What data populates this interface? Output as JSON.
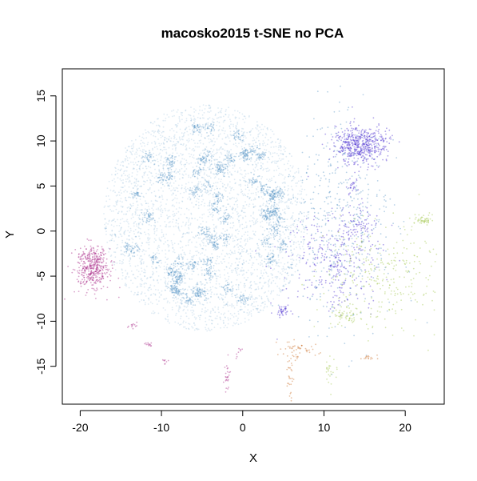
{
  "chart_data": {
    "type": "scatter",
    "title": "macosko2015 t-SNE no PCA",
    "xlabel": "X",
    "ylabel": "Y",
    "xlim": [
      -22.2,
      24.8
    ],
    "ylim": [
      -19.2,
      18.0
    ],
    "xticks": [
      -20,
      -10,
      0,
      10,
      20
    ],
    "yticks": [
      -15,
      -10,
      -5,
      0,
      5,
      10,
      15
    ],
    "xtick_labels": [
      "-20",
      "-10",
      "0",
      "10",
      "20"
    ],
    "ytick_labels": [
      "-15",
      "-10",
      "-5",
      "0",
      "5",
      "10",
      "15"
    ],
    "grid": false,
    "legend": "none",
    "point_style": "small translucent dots",
    "clusters": [
      {
        "color": "#4e8fc2",
        "n": 5200,
        "center": [
          -4.5,
          1.5
        ],
        "spread": [
          6.0,
          6.0
        ],
        "shape": "disc",
        "subclusters": 60
      },
      {
        "color": "#4e8fc2",
        "n": 500,
        "center": [
          12.0,
          0.5
        ],
        "spread": [
          3.0,
          6.0
        ],
        "shape": "gauss"
      },
      {
        "color": "#3b1fce",
        "n": 520,
        "center": [
          14.4,
          9.5
        ],
        "spread": [
          1.6,
          1.1
        ],
        "shape": "gauss"
      },
      {
        "color": "#3b1fce",
        "n": 260,
        "center": [
          11.0,
          -3.5
        ],
        "spread": [
          3.0,
          3.0
        ],
        "shape": "gauss"
      },
      {
        "color": "#3b1fce",
        "n": 80,
        "center": [
          14.5,
          0.5
        ],
        "spread": [
          1.2,
          1.0
        ],
        "shape": "gauss"
      },
      {
        "color": "#3b1fce",
        "n": 40,
        "center": [
          5.0,
          -8.8
        ],
        "spread": [
          0.4,
          0.3
        ],
        "shape": "gauss"
      },
      {
        "color": "#3b1fce",
        "n": 25,
        "center": [
          13.6,
          5.0
        ],
        "spread": [
          0.3,
          0.4
        ],
        "shape": "gauss"
      },
      {
        "color": "#3b1fce",
        "n": 30,
        "center": [
          11.8,
          -4.0
        ],
        "spread": [
          0.4,
          0.7
        ],
        "shape": "gauss"
      },
      {
        "color": "#9cc23e",
        "n": 260,
        "center": [
          17.5,
          -5.0
        ],
        "spread": [
          3.5,
          3.0
        ],
        "shape": "gauss"
      },
      {
        "color": "#9cc23e",
        "n": 50,
        "center": [
          22.3,
          1.2
        ],
        "spread": [
          0.6,
          0.4
        ],
        "shape": "gauss"
      },
      {
        "color": "#9cc23e",
        "n": 60,
        "center": [
          13.0,
          -9.5
        ],
        "spread": [
          1.5,
          0.5
        ],
        "shape": "gauss"
      },
      {
        "color": "#9cc23e",
        "n": 25,
        "center": [
          10.8,
          -15.5
        ],
        "spread": [
          0.4,
          0.8
        ],
        "shape": "gauss"
      },
      {
        "color": "#a3197f",
        "n": 420,
        "center": [
          -18.5,
          -4.0
        ],
        "spread": [
          1.0,
          1.2
        ],
        "shape": "gauss"
      },
      {
        "color": "#a3197f",
        "n": 25,
        "center": [
          -2.0,
          -16.0
        ],
        "spread": [
          0.2,
          1.0
        ],
        "shape": "gauss"
      },
      {
        "color": "#a3197f",
        "n": 12,
        "center": [
          -13.5,
          -10.5
        ],
        "spread": [
          0.3,
          0.2
        ],
        "shape": "gauss"
      },
      {
        "color": "#a3197f",
        "n": 12,
        "center": [
          -11.5,
          -12.5
        ],
        "spread": [
          0.3,
          0.2
        ],
        "shape": "gauss"
      },
      {
        "color": "#a3197f",
        "n": 8,
        "center": [
          -9.5,
          -14.5
        ],
        "spread": [
          0.2,
          0.2
        ],
        "shape": "gauss"
      },
      {
        "color": "#a3197f",
        "n": 8,
        "center": [
          -0.5,
          -13.5
        ],
        "spread": [
          0.2,
          0.3
        ],
        "shape": "gauss"
      },
      {
        "color": "#c9671c",
        "n": 50,
        "center": [
          6.8,
          -13.2
        ],
        "spread": [
          1.2,
          0.5
        ],
        "shape": "gauss"
      },
      {
        "color": "#c9671c",
        "n": 30,
        "center": [
          5.8,
          -16.0
        ],
        "spread": [
          0.2,
          1.6
        ],
        "shape": "gauss"
      },
      {
        "color": "#c9671c",
        "n": 15,
        "center": [
          15.5,
          -14.0
        ],
        "spread": [
          0.6,
          0.2
        ],
        "shape": "gauss"
      }
    ]
  }
}
